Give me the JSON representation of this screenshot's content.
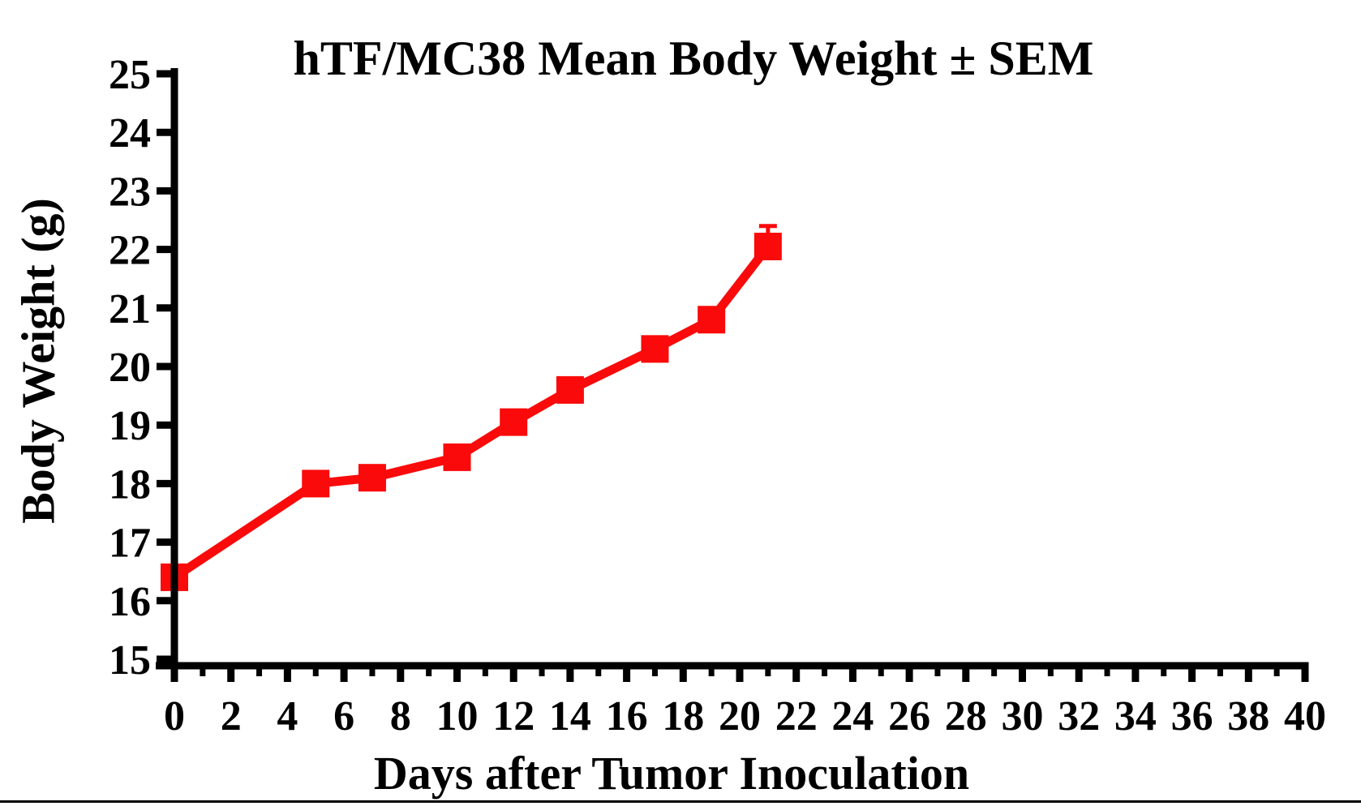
{
  "chart_data": {
    "type": "line",
    "title": "hTF/MC38 Mean Body Weight ± SEM",
    "xlabel": "Days after Tumor Inoculation",
    "ylabel": "Body Weight (g)",
    "x": [
      0,
      5,
      7,
      10,
      12,
      14,
      17,
      19,
      21
    ],
    "series": [
      {
        "name": "hTF/MC38 mean body weight",
        "values": [
          16.4,
          18.0,
          18.1,
          18.45,
          19.05,
          19.6,
          20.3,
          20.8,
          22.05
        ],
        "sem_upper": [
          0,
          0,
          0,
          0,
          0,
          0,
          0,
          0,
          0.35
        ],
        "color": "#FA0A0A",
        "marker": "square"
      }
    ],
    "xlim": [
      0,
      40
    ],
    "ylim": [
      15,
      25
    ],
    "x_major_tick_step": 2,
    "x_minor_tick_step": 1,
    "y_tick_step": 1,
    "x_tick_labels": [
      "0",
      "2",
      "4",
      "6",
      "8",
      "10",
      "12",
      "14",
      "16",
      "18",
      "20",
      "22",
      "24",
      "26",
      "28",
      "30",
      "32",
      "34",
      "36",
      "38",
      "40"
    ],
    "y_tick_labels": [
      "15",
      "16",
      "17",
      "18",
      "19",
      "20",
      "21",
      "22",
      "23",
      "24",
      "25"
    ],
    "grid": false,
    "legend_position": "none",
    "axis_color": "#000000",
    "background_color": "#FFFFFF"
  }
}
